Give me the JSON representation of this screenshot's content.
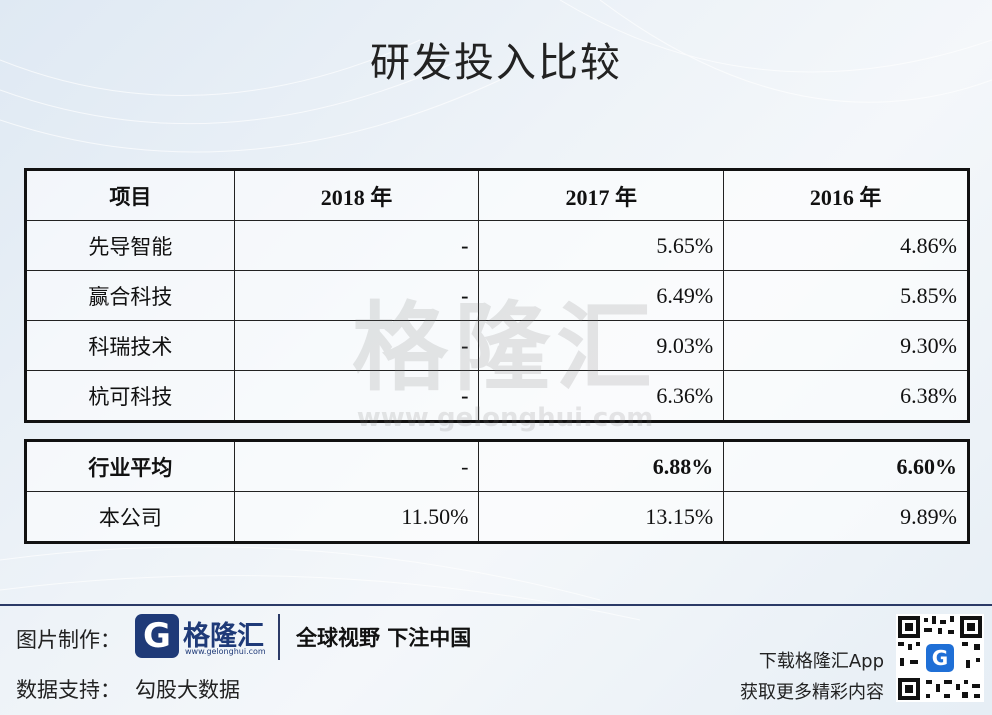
{
  "title": "研发投入比较",
  "table": {
    "headers": [
      "项目",
      "2018 年",
      "2017 年",
      "2016 年"
    ],
    "rows": [
      [
        "先导智能",
        "-",
        "5.65%",
        "4.86%"
      ],
      [
        "赢合科技",
        "-",
        "6.49%",
        "5.85%"
      ],
      [
        "科瑞技术",
        "-",
        "9.03%",
        "9.30%"
      ],
      [
        "杭可科技",
        "-",
        "6.36%",
        "6.38%"
      ]
    ],
    "summary": [
      [
        "行业平均",
        "-",
        "6.88%",
        "6.60%"
      ],
      [
        "本公司",
        "11.50%",
        "13.15%",
        "9.89%"
      ]
    ]
  },
  "watermark": {
    "cn": "格隆汇",
    "url": "www.gelonghui.com"
  },
  "footer": {
    "made_by_label": "图片制作：",
    "logo_letter": "G",
    "logo_name": "格隆汇",
    "logo_url": "www.gelonghui.com",
    "slogan": "全球视野 下注中国",
    "data_label": "数据支持：",
    "data_source": "勾股大数据",
    "download": "下载格隆汇App",
    "more": "获取更多精彩内容"
  },
  "colors": {
    "brand": "#1f3a78",
    "accent": "#2b3a67"
  }
}
